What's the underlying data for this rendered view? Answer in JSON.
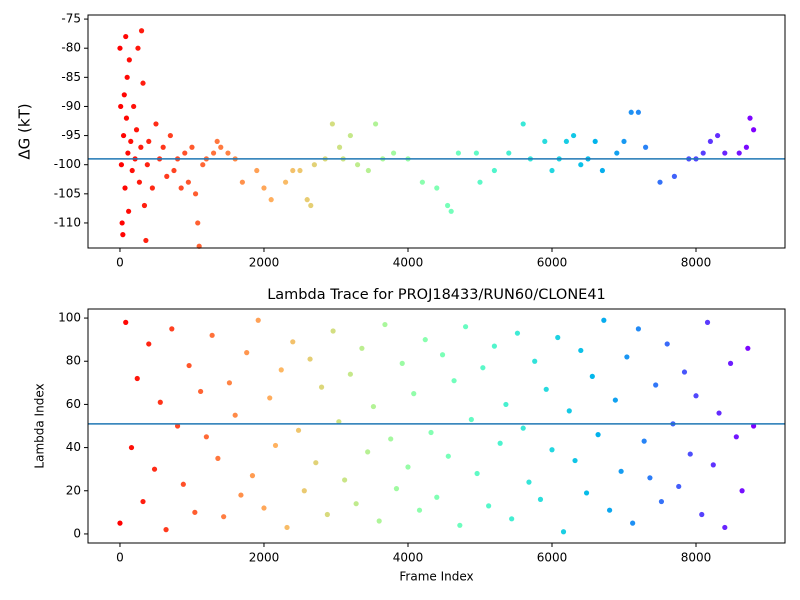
{
  "chart_data": [
    {
      "type": "scatter",
      "ylabel": "ΔG (kT)",
      "colormap": "rainbow_r",
      "hline": -99,
      "hline_color": "#1f77b4",
      "xlim": [
        -444,
        9236
      ],
      "ylim": [
        -114.3,
        -74.3
      ],
      "xticks": [
        0,
        2000,
        4000,
        6000,
        8000
      ],
      "yticks": [
        -75,
        -80,
        -85,
        -90,
        -95,
        -100,
        -105,
        -110
      ],
      "x": [
        0,
        10,
        20,
        30,
        40,
        50,
        60,
        70,
        80,
        90,
        100,
        110,
        120,
        130,
        150,
        170,
        190,
        210,
        230,
        250,
        270,
        290,
        300,
        320,
        340,
        360,
        380,
        400,
        450,
        500,
        550,
        600,
        650,
        700,
        750,
        800,
        850,
        900,
        950,
        1000,
        1050,
        1080,
        1100,
        1150,
        1200,
        1300,
        1350,
        1400,
        1500,
        1600,
        1700,
        1900,
        2000,
        2100,
        2300,
        2400,
        2500,
        2600,
        2650,
        2700,
        2850,
        2950,
        3050,
        3100,
        3200,
        3300,
        3450,
        3550,
        3650,
        3800,
        4000,
        4200,
        4400,
        4550,
        4600,
        4700,
        4950,
        5000,
        5200,
        5400,
        5600,
        5700,
        5900,
        6000,
        6100,
        6200,
        6300,
        6400,
        6500,
        6600,
        6700,
        6900,
        7000,
        7100,
        7200,
        7300,
        7500,
        7700,
        7900,
        8000,
        8100,
        8200,
        8300,
        8400,
        8600,
        8700,
        8750,
        8800
      ],
      "values": [
        -80,
        -90,
        -100,
        -110,
        -112,
        -95,
        -88,
        -104,
        -78,
        -92,
        -85,
        -98,
        -108,
        -82,
        -96,
        -101,
        -90,
        -99,
        -94,
        -80,
        -103,
        -97,
        -77,
        -86,
        -107,
        -113,
        -100,
        -96,
        -104,
        -93,
        -99,
        -97,
        -102,
        -95,
        -101,
        -99,
        -104,
        -98,
        -103,
        -97,
        -105,
        -110,
        -114,
        -100,
        -99,
        -98,
        -96,
        -97,
        -98,
        -99,
        -103,
        -101,
        -104,
        -106,
        -103,
        -101,
        -101,
        -106,
        -107,
        -100,
        -99,
        -93,
        -97,
        -99,
        -95,
        -100,
        -101,
        -93,
        -99,
        -98,
        -99,
        -103,
        -104,
        -107,
        -108,
        -98,
        -98,
        -103,
        -101,
        -98,
        -93,
        -99,
        -96,
        -101,
        -99,
        -96,
        -95,
        -100,
        -99,
        -96,
        -101,
        -98,
        -96,
        -91,
        -91,
        -97,
        -103,
        -102,
        -99,
        -99,
        -98,
        -96,
        -95,
        -98,
        -98,
        -97,
        -92,
        -94
      ]
    },
    {
      "type": "scatter",
      "title": "Lambda Trace for PROJ18433/RUN60/CLONE41",
      "xlabel": "Frame Index",
      "ylabel": "Lambda Index",
      "colormap": "rainbow_r",
      "hline": 51,
      "hline_color": "#1f77b4",
      "xlim": [
        -444,
        9236
      ],
      "ylim": [
        -4.2,
        104.2
      ],
      "xticks": [
        0,
        2000,
        4000,
        6000,
        8000
      ],
      "yticks": [
        0,
        20,
        40,
        60,
        80,
        100
      ],
      "x": [
        0,
        80,
        160,
        240,
        320,
        400,
        480,
        560,
        640,
        720,
        800,
        880,
        960,
        1040,
        1120,
        1200,
        1280,
        1360,
        1440,
        1520,
        1600,
        1680,
        1760,
        1840,
        1920,
        2000,
        2080,
        2160,
        2240,
        2320,
        2400,
        2480,
        2560,
        2640,
        2720,
        2800,
        2880,
        2960,
        3040,
        3120,
        3200,
        3280,
        3360,
        3440,
        3520,
        3600,
        3680,
        3760,
        3840,
        3920,
        4000,
        4080,
        4160,
        4240,
        4320,
        4400,
        4480,
        4560,
        4640,
        4720,
        4800,
        4880,
        4960,
        5040,
        5120,
        5200,
        5280,
        5360,
        5440,
        5520,
        5600,
        5680,
        5760,
        5840,
        5920,
        6000,
        6080,
        6160,
        6240,
        6320,
        6400,
        6480,
        6560,
        6640,
        6720,
        6800,
        6880,
        6960,
        7040,
        7120,
        7200,
        7280,
        7360,
        7440,
        7520,
        7600,
        7680,
        7760,
        7840,
        7920,
        8000,
        8080,
        8160,
        8240,
        8320,
        8400,
        8480,
        8560,
        8640,
        8720,
        8800
      ],
      "values": [
        5,
        98,
        40,
        72,
        15,
        88,
        30,
        61,
        2,
        95,
        50,
        23,
        78,
        10,
        66,
        45,
        92,
        35,
        8,
        70,
        55,
        18,
        84,
        27,
        99,
        12,
        63,
        41,
        76,
        3,
        89,
        48,
        20,
        81,
        33,
        68,
        9,
        94,
        52,
        25,
        74,
        14,
        86,
        38,
        59,
        6,
        97,
        44,
        21,
        79,
        31,
        65,
        11,
        90,
        47,
        17,
        83,
        36,
        71,
        4,
        96,
        53,
        28,
        77,
        13,
        87,
        42,
        60,
        7,
        93,
        49,
        24,
        80,
        16,
        67,
        39,
        91,
        1,
        57,
        34,
        85,
        19,
        73,
        46,
        99,
        11,
        62,
        29,
        82,
        5,
        95,
        43,
        26,
        69,
        15,
        88,
        51,
        22,
        75,
        37,
        64,
        9,
        98,
        32,
        56,
        3,
        79,
        45,
        20,
        86,
        50
      ]
    }
  ]
}
